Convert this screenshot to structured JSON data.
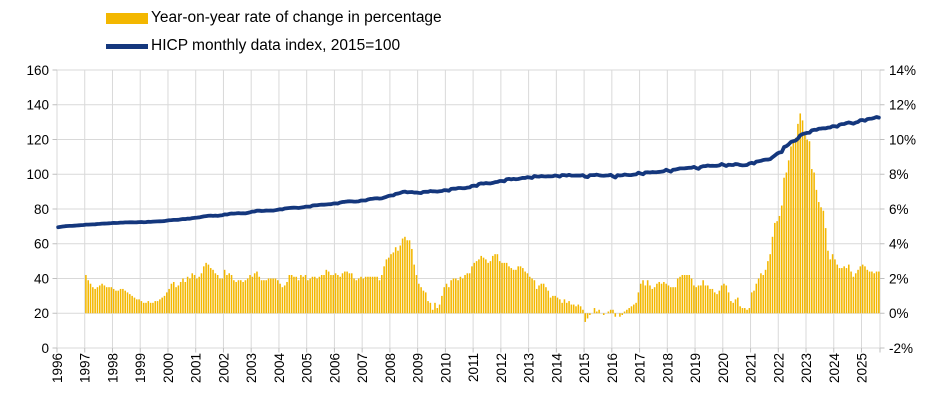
{
  "chart_data": {
    "type": "combo-bar-line",
    "title": "",
    "background": "#FFFFFF",
    "grid": {
      "show": true,
      "color": "#D9D9D9"
    },
    "legend_position": "top-left",
    "legend": [
      {
        "label": "Year-on-year rate of change in percentage",
        "marker": "bar",
        "color": "#F3B700",
        "axis": "right"
      },
      {
        "label": "HICP monthly data index, 2015=100",
        "marker": "line",
        "color": "#14377D",
        "axis": "left"
      }
    ],
    "axes": {
      "left": {
        "min": 0,
        "max": 160,
        "step": 20,
        "tick_labels": [
          "0",
          "20",
          "40",
          "60",
          "80",
          "100",
          "120",
          "140",
          "160"
        ]
      },
      "right": {
        "min": -2,
        "max": 14,
        "step": 2,
        "tick_labels": [
          "-2%",
          "0%",
          "2%",
          "4%",
          "6%",
          "8%",
          "10%",
          "12%",
          "14%"
        ]
      },
      "x": {
        "start_month": "1996-01",
        "end_month": "2025-08",
        "tick_labels": [
          "1996",
          "1997",
          "1998",
          "1999",
          "2000",
          "2001",
          "2002",
          "2003",
          "2004",
          "2005",
          "2006",
          "2007",
          "2008",
          "2009",
          "2010",
          "2011",
          "2012",
          "2013",
          "2014",
          "2015",
          "2016",
          "2017",
          "2018",
          "2019",
          "2020",
          "2021",
          "2022",
          "2023",
          "2024",
          "2025"
        ]
      }
    },
    "series": {
      "yoy_rate_percent": {
        "start_month": "1997-01",
        "values_by_year": {
          "1997": [
            2.2,
            1.9,
            1.7,
            1.5,
            1.4,
            1.5,
            1.6,
            1.7,
            1.6,
            1.5,
            1.5,
            1.5
          ],
          "1998": [
            1.4,
            1.3,
            1.3,
            1.4,
            1.4,
            1.3,
            1.2,
            1.1,
            1.0,
            0.9,
            0.8,
            0.8
          ],
          "1999": [
            0.7,
            0.6,
            0.6,
            0.7,
            0.6,
            0.6,
            0.7,
            0.7,
            0.8,
            0.9,
            1.0,
            1.2
          ],
          "2000": [
            1.4,
            1.7,
            1.8,
            1.5,
            1.6,
            1.8,
            2.0,
            1.8,
            2.1,
            2.0,
            2.3,
            2.2
          ],
          "2001": [
            2.0,
            2.1,
            2.3,
            2.7,
            2.9,
            2.8,
            2.6,
            2.5,
            2.3,
            2.2,
            2.0,
            2.0
          ],
          "2002": [
            2.5,
            2.2,
            2.3,
            2.2,
            1.9,
            1.8,
            1.9,
            1.9,
            1.8,
            1.9,
            2.0,
            2.2
          ],
          "2003": [
            2.1,
            2.3,
            2.4,
            2.1,
            1.9,
            1.9,
            1.9,
            2.0,
            2.0,
            2.0,
            2.0,
            1.9
          ],
          "2004": [
            1.7,
            1.5,
            1.6,
            1.8,
            2.2,
            2.2,
            2.1,
            2.1,
            1.9,
            2.2,
            2.1,
            2.2
          ],
          "2005": [
            1.9,
            2.0,
            2.1,
            2.1,
            2.0,
            2.1,
            2.2,
            2.2,
            2.5,
            2.4,
            2.2,
            2.2
          ],
          "2006": [
            2.3,
            2.2,
            2.1,
            2.3,
            2.4,
            2.4,
            2.3,
            2.3,
            2.0,
            1.9,
            2.0,
            2.1
          ],
          "2007": [
            2.0,
            2.1,
            2.1,
            2.1,
            2.1,
            2.1,
            2.1,
            1.9,
            2.2,
            2.7,
            3.1,
            3.2
          ],
          "2008": [
            3.4,
            3.5,
            3.8,
            3.6,
            3.9,
            4.3,
            4.4,
            4.2,
            4.2,
            3.7,
            2.8,
            2.2
          ],
          "2009": [
            1.7,
            1.5,
            1.3,
            1.2,
            0.7,
            0.6,
            0.2,
            0.6,
            0.3,
            0.5,
            1.0,
            1.5
          ],
          "2010": [
            1.7,
            1.5,
            1.9,
            2.0,
            2.0,
            1.9,
            2.1,
            2.0,
            2.2,
            2.3,
            2.3,
            2.7
          ],
          "2011": [
            2.9,
            3.0,
            3.1,
            3.3,
            3.2,
            3.1,
            2.9,
            3.0,
            3.3,
            3.4,
            3.4,
            3.0
          ],
          "2012": [
            2.9,
            2.9,
            2.9,
            2.7,
            2.6,
            2.5,
            2.5,
            2.7,
            2.7,
            2.6,
            2.4,
            2.3
          ],
          "2013": [
            2.1,
            2.0,
            1.9,
            1.4,
            1.6,
            1.7,
            1.7,
            1.5,
            1.3,
            0.9,
            1.0,
            1.0
          ],
          "2014": [
            0.9,
            0.8,
            0.6,
            0.8,
            0.6,
            0.7,
            0.5,
            0.5,
            0.4,
            0.5,
            0.4,
            0.2
          ],
          "2015": [
            -0.5,
            -0.3,
            -0.1,
            0.0,
            0.3,
            0.1,
            0.2,
            0.0,
            -0.1,
            0.0,
            0.1,
            0.2
          ],
          "2016": [
            0.2,
            -0.2,
            0.0,
            -0.2,
            -0.1,
            0.1,
            0.2,
            0.3,
            0.4,
            0.5,
            0.6,
            1.2
          ],
          "2017": [
            1.7,
            1.9,
            1.6,
            1.9,
            1.6,
            1.4,
            1.5,
            1.7,
            1.8,
            1.7,
            1.8,
            1.7
          ],
          "2018": [
            1.6,
            1.5,
            1.5,
            1.5,
            2.0,
            2.1,
            2.2,
            2.2,
            2.2,
            2.2,
            2.0,
            1.6
          ],
          "2019": [
            1.5,
            1.6,
            1.6,
            1.9,
            1.6,
            1.6,
            1.4,
            1.4,
            1.2,
            1.1,
            1.3,
            1.6
          ],
          "2020": [
            1.7,
            1.6,
            1.2,
            0.7,
            0.6,
            0.8,
            0.9,
            0.4,
            0.3,
            0.3,
            0.2,
            0.3
          ],
          "2021": [
            1.2,
            1.3,
            1.7,
            2.0,
            2.3,
            2.2,
            2.5,
            3.0,
            3.4,
            4.4,
            5.2,
            5.3
          ],
          "2022": [
            5.6,
            6.2,
            7.8,
            8.1,
            8.8,
            9.6,
            9.8,
            10.1,
            10.9,
            11.5,
            11.1,
            10.4
          ],
          "2023": [
            10.0,
            9.9,
            8.3,
            8.1,
            7.1,
            6.4,
            6.1,
            5.9,
            4.9,
            3.6,
            3.1,
            3.4
          ],
          "2024": [
            3.1,
            2.8,
            2.6,
            2.6,
            2.7,
            2.6,
            2.8,
            2.4,
            2.1,
            2.3,
            2.5,
            2.7
          ],
          "2025": [
            2.8,
            2.7,
            2.5,
            2.4,
            2.4,
            2.3,
            2.4,
            2.4
          ]
        }
      },
      "hicp_index": {
        "note_start_month": "1996-01",
        "index_1996_monthly": [
          69.5,
          69.7,
          69.9,
          70.1,
          70.2,
          70.3,
          70.3,
          70.4,
          70.5,
          70.6,
          70.7,
          70.8
        ],
        "approx_january_values": [
          69.5,
          71.0,
          72.0,
          72.5,
          73.5,
          75.0,
          76.9,
          78.5,
          79.8,
          81.4,
          83.2,
          84.9,
          87.8,
          89.3,
          90.8,
          93.4,
          96.1,
          98.2,
          99.0,
          98.5,
          98.7,
          100.4,
          102.0,
          103.6,
          105.3,
          106.6,
          112.6,
          123.8,
          127.6,
          131.2
        ],
        "end_value_2025_08": 133.4
      }
    }
  }
}
